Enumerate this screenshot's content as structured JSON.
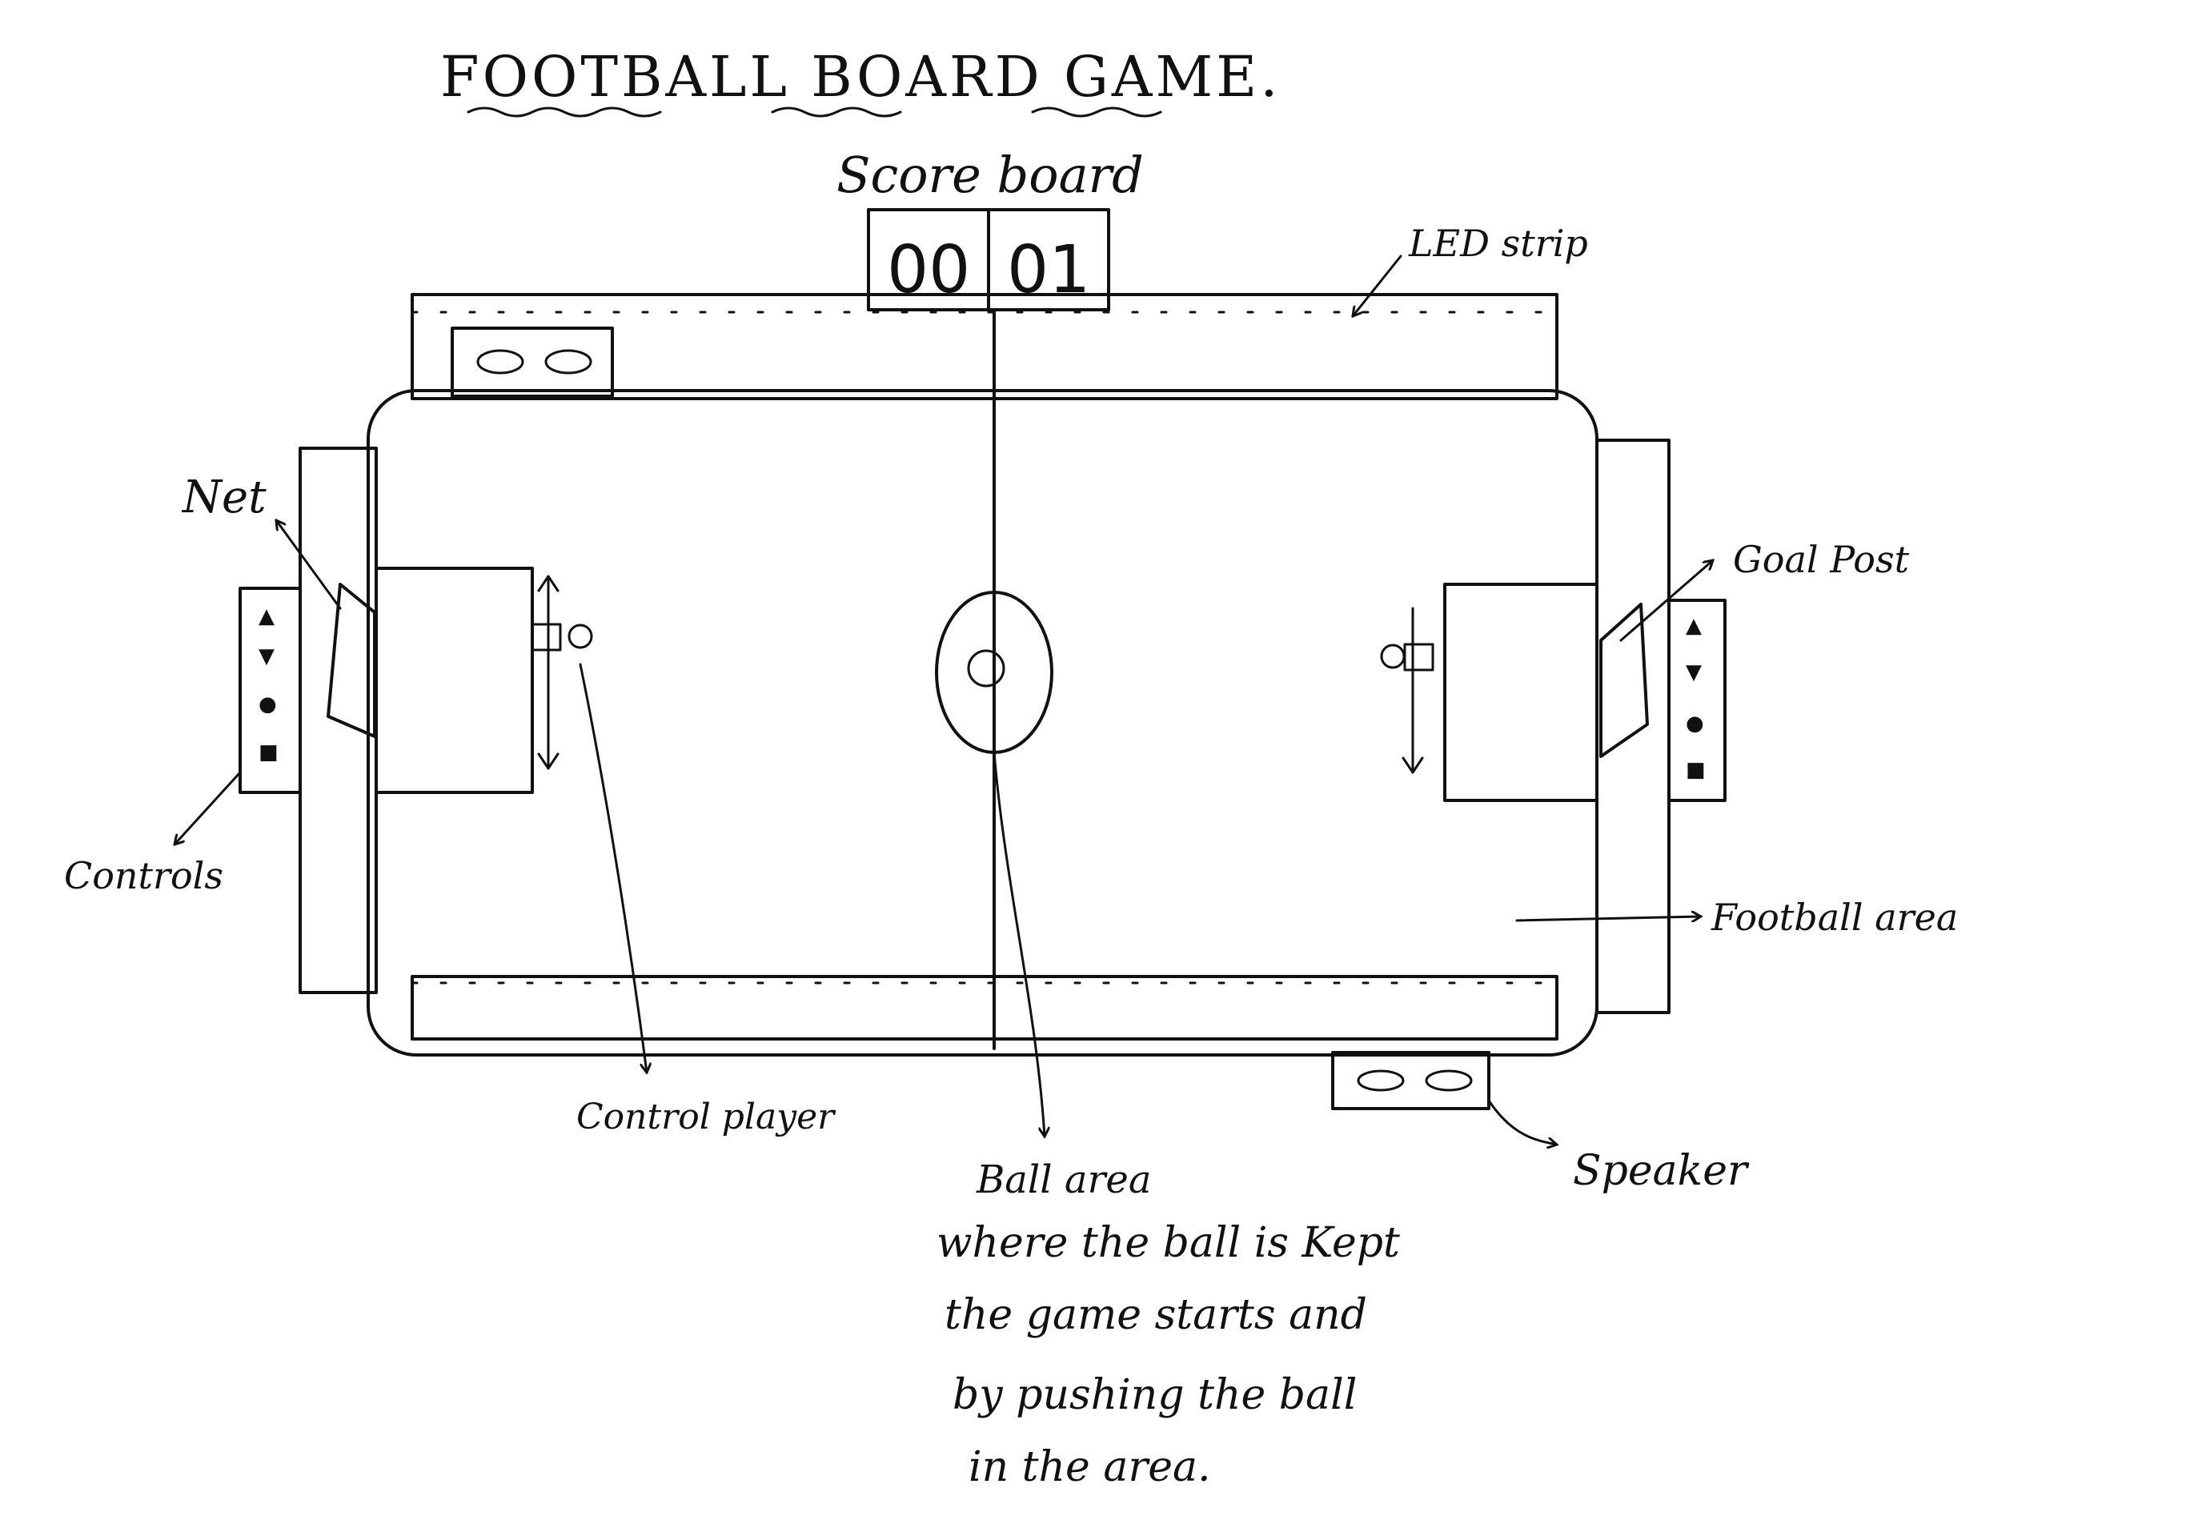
{
  "title": "FOOTBALL BOARD GAME.",
  "scoreboard": {
    "label": "Score board",
    "left_score": "00",
    "right_score": "01"
  },
  "labels": {
    "led_strip": "LED strip",
    "net": "Net",
    "goal_post": "Goal Post",
    "controls": "Controls",
    "football_area": "Football area",
    "control_player": "Control player",
    "speaker": "Speaker",
    "ball_area": "Ball area"
  },
  "description": [
    "where the ball is Kept",
    "the game starts and",
    "by pushing the ball",
    "in the area."
  ],
  "control_buttons": {
    "left": [
      "▲",
      "▼",
      "●",
      "■"
    ],
    "right": [
      "▲",
      "▼",
      "●",
      "■"
    ]
  },
  "colors": {
    "ink": "#111111",
    "paper": "#ffffff"
  }
}
